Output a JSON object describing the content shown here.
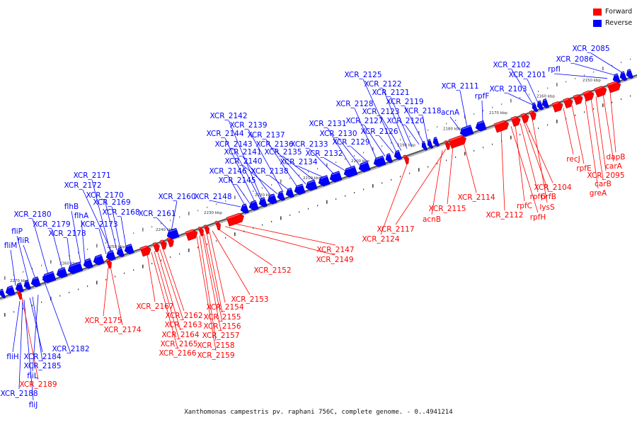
{
  "caption": "Xanthomonas campestris pv. raphani 756C, complete genome. - 0..4941214",
  "legend": [
    {
      "label": "Forward",
      "color": "#ff0000"
    },
    {
      "label": "Reverse",
      "color": "#0000ff"
    }
  ],
  "colors": {
    "forward": "#ff0000",
    "reverse": "#0000ff",
    "backbone": "#555555"
  },
  "ticks": [
    "2150 kbp",
    "2160 kbp",
    "2170 kbp",
    "2180 kbp",
    "2190 kbp",
    "2200 kbp",
    "2210 kbp",
    "2220 kbp",
    "2230 kbp",
    "2240 kbp",
    "2250 kbp",
    "2260 kbp",
    "2270 kbp"
  ],
  "reverse_genes": [
    "XCR_2085",
    "XCR_2086",
    "rpfI",
    "XCR_2101",
    "XCR_2102",
    "XCR_2103",
    "rpfF",
    "XCR_2111",
    "acnA",
    "XCR_2118",
    "XCR_2119",
    "XCR_2120",
    "XCR_2121",
    "XCR_2122",
    "XCR_2123",
    "XCR_2125",
    "XCR_2126",
    "XCR_2127",
    "XCR_2128",
    "XCR_2129",
    "XCR_2130",
    "XCR_2131",
    "XCR_2132",
    "XCR_2133",
    "XCR_2134",
    "XCR_2135",
    "XCR_2136",
    "XCR_2137",
    "XCR_2138",
    "XCR_2139",
    "XCR_2140",
    "XCR_2141",
    "XCR_2142",
    "XCR_2143",
    "XCR_2144",
    "XCR_2145",
    "XCR_2146",
    "XCR_2148",
    "XCR_2160",
    "XCR_2161",
    "XCR_2168",
    "XCR_2169",
    "XCR_2170",
    "XCR_2171",
    "XCR_2172",
    "XCR_2173",
    "flhA",
    "flhB",
    "XCR_2178",
    "XCR_2179",
    "XCR_2180",
    "fliR",
    "fliP",
    "fliM",
    "XCR_2182",
    "fliH",
    "XCR_2184",
    "XCR_2185",
    "fliL",
    "XCR_2188",
    "fliJ"
  ],
  "forward_genes": [
    "dapB",
    "carA",
    "XCR_2095",
    "carB",
    "greA",
    "rpfE",
    "recJ",
    "XCR_2104",
    "prfB",
    "rpfG",
    "lysS",
    "rpfC",
    "rpfH",
    "XCR_2112",
    "XCR_2114",
    "XCR_2115",
    "acnB",
    "XCR_2117",
    "XCR_2124",
    "XCR_2147",
    "XCR_2149",
    "XCR_2152",
    "XCR_2153",
    "XCR_2154",
    "XCR_2155",
    "XCR_2156",
    "XCR_2157",
    "XCR_2158",
    "XCR_2159",
    "XCR_2162",
    "XCR_2163",
    "XCR_2164",
    "XCR_2165",
    "XCR_2166",
    "XCR_2167",
    "XCR_2174",
    "XCR_2175",
    "XCR_2189"
  ]
}
